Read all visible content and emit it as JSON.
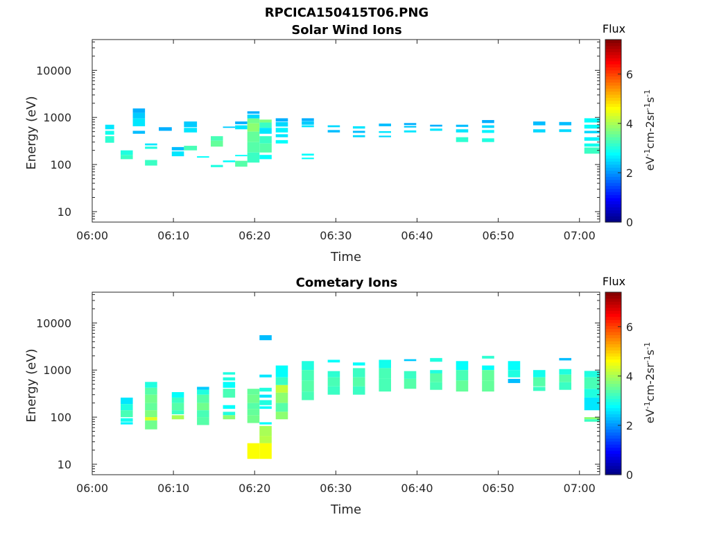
{
  "figure": {
    "title": "RPCICA150415T06.PNG",
    "colormap": [
      "#00007f",
      "#0000ff",
      "#007fff",
      "#00ffff",
      "#7fff7f",
      "#ffff00",
      "#ff7f00",
      "#ff0000",
      "#7f0000"
    ]
  },
  "chart_data": [
    {
      "type": "heatmap",
      "title": "Solar Wind Ions",
      "xlabel": "Time",
      "ylabel": "Energy (eV)",
      "x_ticks": [
        "06:00",
        "06:10",
        "06:20",
        "06:30",
        "06:40",
        "06:50",
        "07:00"
      ],
      "x_tick_minutes": [
        0,
        10,
        20,
        30,
        40,
        50,
        60
      ],
      "xlim_minutes": [
        0,
        62.5
      ],
      "y_scale": "log",
      "y_ticks": [
        "10",
        "100",
        "1000",
        "10000"
      ],
      "y_tick_values": [
        10,
        100,
        1000,
        10000
      ],
      "ylim": [
        6,
        45000
      ],
      "colorbar": {
        "title": "Flux",
        "label": "eV-1cm-2sr-1s-1",
        "ticks": [
          "0",
          "2",
          "4",
          "6"
        ],
        "tick_values": [
          0,
          2,
          4,
          6
        ],
        "range": [
          0,
          7.4
        ]
      },
      "cells": [
        [
          1.6,
          2.7,
          560,
          700,
          2.6
        ],
        [
          1.6,
          2.7,
          430,
          520,
          2.9
        ],
        [
          1.6,
          2.7,
          290,
          400,
          3.1
        ],
        [
          3.5,
          5.0,
          160,
          200,
          3.0
        ],
        [
          3.5,
          5.0,
          130,
          160,
          3.2
        ],
        [
          5.0,
          6.5,
          1250,
          1550,
          2.2
        ],
        [
          5.0,
          6.5,
          950,
          1250,
          2.4
        ],
        [
          5.0,
          6.5,
          650,
          950,
          2.6
        ],
        [
          5.0,
          6.5,
          450,
          520,
          2.3
        ],
        [
          6.5,
          8.0,
          255,
          280,
          2.6
        ],
        [
          6.5,
          8.0,
          215,
          240,
          3.0
        ],
        [
          6.5,
          8.0,
          95,
          125,
          3.2
        ],
        [
          8.2,
          9.8,
          520,
          620,
          2.2
        ],
        [
          9.8,
          11.3,
          200,
          235,
          2.3
        ],
        [
          9.8,
          11.3,
          150,
          190,
          2.6
        ],
        [
          11.3,
          12.9,
          620,
          820,
          2.4
        ],
        [
          11.3,
          12.9,
          480,
          600,
          2.6
        ],
        [
          11.3,
          12.9,
          200,
          250,
          3.3
        ],
        [
          12.9,
          14.4,
          140,
          150,
          2.8
        ],
        [
          14.6,
          16.1,
          320,
          400,
          3.3
        ],
        [
          14.6,
          16.1,
          240,
          320,
          3.5
        ],
        [
          14.6,
          16.1,
          88,
          98,
          3.0
        ],
        [
          16.1,
          17.6,
          600,
          640,
          2.4
        ],
        [
          16.1,
          17.6,
          112,
          122,
          2.8
        ],
        [
          17.6,
          19.1,
          720,
          820,
          2.2
        ],
        [
          17.6,
          19.1,
          560,
          680,
          2.6
        ],
        [
          17.6,
          19.1,
          150,
          160,
          2.8
        ],
        [
          17.6,
          19.1,
          90,
          120,
          3.4
        ],
        [
          19.1,
          20.6,
          1200,
          1350,
          2.2
        ],
        [
          19.1,
          20.6,
          950,
          1150,
          2.5
        ],
        [
          19.1,
          20.6,
          750,
          950,
          3.6
        ],
        [
          19.1,
          20.6,
          500,
          750,
          3.8
        ],
        [
          19.1,
          20.6,
          300,
          500,
          3.5
        ],
        [
          19.1,
          20.6,
          180,
          300,
          3.4
        ],
        [
          19.1,
          20.6,
          110,
          180,
          3.2
        ],
        [
          20.6,
          22.1,
          780,
          900,
          3.7
        ],
        [
          20.6,
          22.1,
          600,
          780,
          3.2
        ],
        [
          20.6,
          22.1,
          450,
          600,
          2.6
        ],
        [
          20.6,
          22.1,
          280,
          400,
          3.2
        ],
        [
          20.6,
          22.1,
          180,
          280,
          3.4
        ],
        [
          20.6,
          22.1,
          130,
          160,
          2.8
        ],
        [
          22.6,
          24.1,
          820,
          960,
          2.2
        ],
        [
          22.6,
          24.1,
          640,
          800,
          2.5
        ],
        [
          22.6,
          24.1,
          480,
          600,
          2.7
        ],
        [
          22.6,
          24.1,
          380,
          440,
          2.6
        ],
        [
          22.6,
          24.1,
          280,
          330,
          2.8
        ],
        [
          25.8,
          27.3,
          840,
          960,
          2.2
        ],
        [
          25.8,
          27.3,
          700,
          830,
          2.4
        ],
        [
          25.8,
          27.3,
          620,
          680,
          2.6
        ],
        [
          25.8,
          27.3,
          155,
          170,
          2.8
        ],
        [
          25.8,
          27.3,
          130,
          140,
          2.8
        ],
        [
          29.0,
          30.5,
          620,
          680,
          2.5
        ],
        [
          29.0,
          30.5,
          480,
          540,
          2.3
        ],
        [
          32.1,
          33.6,
          580,
          650,
          2.6
        ],
        [
          32.1,
          33.6,
          470,
          520,
          2.3
        ],
        [
          32.1,
          33.6,
          380,
          420,
          2.5
        ],
        [
          35.3,
          36.8,
          650,
          740,
          2.3
        ],
        [
          35.3,
          36.8,
          470,
          510,
          2.6
        ],
        [
          35.3,
          36.8,
          380,
          410,
          2.5
        ],
        [
          38.4,
          39.9,
          690,
          760,
          2.2
        ],
        [
          38.4,
          39.9,
          610,
          660,
          2.4
        ],
        [
          38.4,
          39.9,
          480,
          530,
          2.6
        ],
        [
          41.6,
          43.1,
          640,
          700,
          2.2
        ],
        [
          41.6,
          43.1,
          520,
          580,
          2.6
        ],
        [
          44.8,
          46.3,
          630,
          700,
          2.3
        ],
        [
          44.8,
          46.3,
          480,
          560,
          2.6
        ],
        [
          44.8,
          46.3,
          300,
          380,
          3.1
        ],
        [
          48.0,
          49.5,
          760,
          880,
          2.2
        ],
        [
          48.0,
          49.5,
          600,
          680,
          2.5
        ],
        [
          48.0,
          49.5,
          470,
          540,
          2.7
        ],
        [
          48.0,
          49.5,
          300,
          360,
          3.0
        ],
        [
          54.3,
          55.8,
          680,
          820,
          2.3
        ],
        [
          54.3,
          55.8,
          480,
          560,
          2.5
        ],
        [
          57.5,
          59.0,
          680,
          800,
          2.3
        ],
        [
          57.5,
          59.0,
          490,
          560,
          2.5
        ],
        [
          60.6,
          62.5,
          780,
          960,
          2.8
        ],
        [
          60.6,
          62.5,
          580,
          700,
          2.8
        ],
        [
          60.6,
          62.5,
          460,
          520,
          2.5
        ],
        [
          60.6,
          62.5,
          320,
          380,
          2.7
        ],
        [
          60.6,
          62.5,
          240,
          280,
          2.9
        ],
        [
          60.6,
          62.5,
          170,
          230,
          3.2
        ]
      ]
    },
    {
      "type": "heatmap",
      "title": "Cometary Ions",
      "xlabel": "Time",
      "ylabel": "Energy (eV)",
      "x_ticks": [
        "06:00",
        "06:10",
        "06:20",
        "06:30",
        "06:40",
        "06:50",
        "07:00"
      ],
      "x_tick_minutes": [
        0,
        10,
        20,
        30,
        40,
        50,
        60
      ],
      "xlim_minutes": [
        0,
        62.5
      ],
      "y_scale": "log",
      "y_ticks": [
        "10",
        "100",
        "1000",
        "10000"
      ],
      "y_tick_values": [
        10,
        100,
        1000,
        10000
      ],
      "ylim": [
        6,
        45000
      ],
      "colorbar": {
        "title": "Flux",
        "label": "eV-1cm-2sr-1s-1",
        "ticks": [
          "0",
          "2",
          "4",
          "6"
        ],
        "tick_values": [
          0,
          2,
          4,
          6
        ],
        "range": [
          0,
          7.4
        ]
      },
      "cells": [
        [
          3.5,
          5.0,
          190,
          260,
          2.6
        ],
        [
          3.5,
          5.0,
          140,
          190,
          3.0
        ],
        [
          3.5,
          5.0,
          100,
          140,
          3.3
        ],
        [
          3.5,
          5.0,
          80,
          95,
          2.9
        ],
        [
          3.5,
          5.0,
          70,
          78,
          2.7
        ],
        [
          6.5,
          8.0,
          420,
          560,
          3.0
        ],
        [
          6.5,
          8.0,
          300,
          420,
          3.4
        ],
        [
          6.5,
          8.0,
          200,
          300,
          3.6
        ],
        [
          6.5,
          8.0,
          140,
          200,
          3.5
        ],
        [
          6.5,
          8.0,
          100,
          140,
          3.7
        ],
        [
          6.5,
          8.0,
          85,
          100,
          4.4
        ],
        [
          6.5,
          8.0,
          55,
          85,
          3.6
        ],
        [
          9.8,
          11.3,
          260,
          340,
          2.8
        ],
        [
          9.8,
          11.3,
          200,
          260,
          3.2
        ],
        [
          9.8,
          11.3,
          140,
          200,
          3.4
        ],
        [
          9.8,
          11.3,
          115,
          140,
          3.2
        ],
        [
          9.8,
          11.3,
          90,
          110,
          4.0
        ],
        [
          12.9,
          14.4,
          380,
          440,
          2.4
        ],
        [
          12.9,
          14.4,
          300,
          380,
          3.0
        ],
        [
          12.9,
          14.4,
          200,
          300,
          3.4
        ],
        [
          12.9,
          14.4,
          140,
          200,
          3.6
        ],
        [
          12.9,
          14.4,
          100,
          140,
          3.3
        ],
        [
          12.9,
          14.4,
          68,
          100,
          3.4
        ],
        [
          16.1,
          17.6,
          800,
          900,
          3.0
        ],
        [
          16.1,
          17.6,
          600,
          700,
          3.0
        ],
        [
          16.1,
          17.6,
          420,
          560,
          2.8
        ],
        [
          16.1,
          17.6,
          260,
          400,
          3.3
        ],
        [
          16.1,
          17.6,
          150,
          180,
          2.8
        ],
        [
          16.1,
          17.6,
          110,
          130,
          3.0
        ],
        [
          16.1,
          17.6,
          90,
          110,
          3.8
        ],
        [
          19.1,
          20.6,
          300,
          400,
          3.5
        ],
        [
          19.1,
          20.6,
          200,
          300,
          3.6
        ],
        [
          19.1,
          20.6,
          150,
          200,
          3.4
        ],
        [
          19.1,
          20.6,
          110,
          150,
          3.5
        ],
        [
          19.1,
          20.6,
          75,
          110,
          3.6
        ],
        [
          19.1,
          20.6,
          13,
          28,
          4.6
        ],
        [
          20.6,
          22.1,
          4300,
          5500,
          2.3
        ],
        [
          20.6,
          22.1,
          700,
          800,
          2.6
        ],
        [
          20.6,
          22.1,
          350,
          420,
          3.0
        ],
        [
          20.6,
          22.1,
          260,
          300,
          2.6
        ],
        [
          20.6,
          22.1,
          180,
          230,
          3.0
        ],
        [
          20.6,
          22.1,
          150,
          170,
          2.8
        ],
        [
          20.6,
          22.1,
          70,
          78,
          2.8
        ],
        [
          20.6,
          22.1,
          40,
          65,
          4.0
        ],
        [
          20.6,
          22.1,
          28,
          40,
          4.1
        ],
        [
          20.6,
          22.1,
          13,
          28,
          4.6
        ],
        [
          22.6,
          24.1,
          700,
          1250,
          2.8
        ],
        [
          22.6,
          24.1,
          480,
          700,
          3.2
        ],
        [
          22.6,
          24.1,
          330,
          480,
          4.2
        ],
        [
          22.6,
          24.1,
          200,
          330,
          3.8
        ],
        [
          22.6,
          24.1,
          130,
          200,
          3.4
        ],
        [
          22.6,
          24.1,
          90,
          130,
          3.8
        ],
        [
          25.8,
          27.3,
          1000,
          1550,
          3.0
        ],
        [
          25.8,
          27.3,
          600,
          1000,
          3.3
        ],
        [
          25.8,
          27.3,
          350,
          600,
          3.4
        ],
        [
          25.8,
          27.3,
          230,
          350,
          3.3
        ],
        [
          29.0,
          30.5,
          1450,
          1650,
          2.8
        ],
        [
          29.0,
          30.5,
          700,
          950,
          3.1
        ],
        [
          29.0,
          30.5,
          450,
          700,
          3.3
        ],
        [
          29.0,
          30.5,
          300,
          450,
          3.2
        ],
        [
          32.1,
          33.6,
          1250,
          1450,
          2.8
        ],
        [
          32.1,
          33.6,
          700,
          1100,
          3.2
        ],
        [
          32.1,
          33.6,
          450,
          700,
          3.4
        ],
        [
          32.1,
          33.6,
          300,
          450,
          3.2
        ],
        [
          35.3,
          36.8,
          1100,
          1650,
          2.9
        ],
        [
          35.3,
          36.8,
          650,
          1100,
          3.3
        ],
        [
          35.3,
          36.8,
          350,
          650,
          3.3
        ],
        [
          38.4,
          39.9,
          1550,
          1700,
          2.4
        ],
        [
          38.4,
          39.9,
          650,
          950,
          3.2
        ],
        [
          38.4,
          39.9,
          400,
          650,
          3.4
        ],
        [
          41.6,
          43.1,
          1500,
          1800,
          3.0
        ],
        [
          41.6,
          43.1,
          850,
          1000,
          3.0
        ],
        [
          41.6,
          43.1,
          550,
          850,
          3.4
        ],
        [
          41.6,
          43.1,
          380,
          550,
          3.3
        ],
        [
          44.8,
          46.3,
          1000,
          1550,
          2.8
        ],
        [
          44.8,
          46.3,
          600,
          1000,
          3.3
        ],
        [
          44.8,
          46.3,
          350,
          600,
          3.5
        ],
        [
          48.0,
          49.5,
          1750,
          2000,
          3.1
        ],
        [
          48.0,
          49.5,
          1000,
          1250,
          2.8
        ],
        [
          48.0,
          49.5,
          600,
          1000,
          3.5
        ],
        [
          48.0,
          49.5,
          350,
          600,
          3.5
        ],
        [
          51.2,
          52.7,
          1000,
          1550,
          2.8
        ],
        [
          51.2,
          52.7,
          700,
          1000,
          3.0
        ],
        [
          51.2,
          52.7,
          530,
          650,
          2.3
        ],
        [
          54.3,
          55.8,
          700,
          1000,
          2.9
        ],
        [
          54.3,
          55.8,
          450,
          700,
          3.4
        ],
        [
          54.3,
          55.8,
          360,
          440,
          3.2
        ],
        [
          57.5,
          59.0,
          1600,
          1800,
          2.3
        ],
        [
          57.5,
          59.0,
          800,
          1050,
          3.0
        ],
        [
          57.5,
          59.0,
          550,
          800,
          3.4
        ],
        [
          57.5,
          59.0,
          380,
          550,
          3.2
        ],
        [
          60.6,
          62.5,
          700,
          960,
          3.0
        ],
        [
          60.6,
          62.5,
          400,
          700,
          3.3
        ],
        [
          60.6,
          62.5,
          260,
          400,
          3.0
        ],
        [
          60.6,
          62.5,
          140,
          260,
          2.6
        ],
        [
          60.6,
          62.5,
          90,
          100,
          3.8
        ],
        [
          60.6,
          62.5,
          80,
          90,
          3.2
        ]
      ]
    }
  ]
}
